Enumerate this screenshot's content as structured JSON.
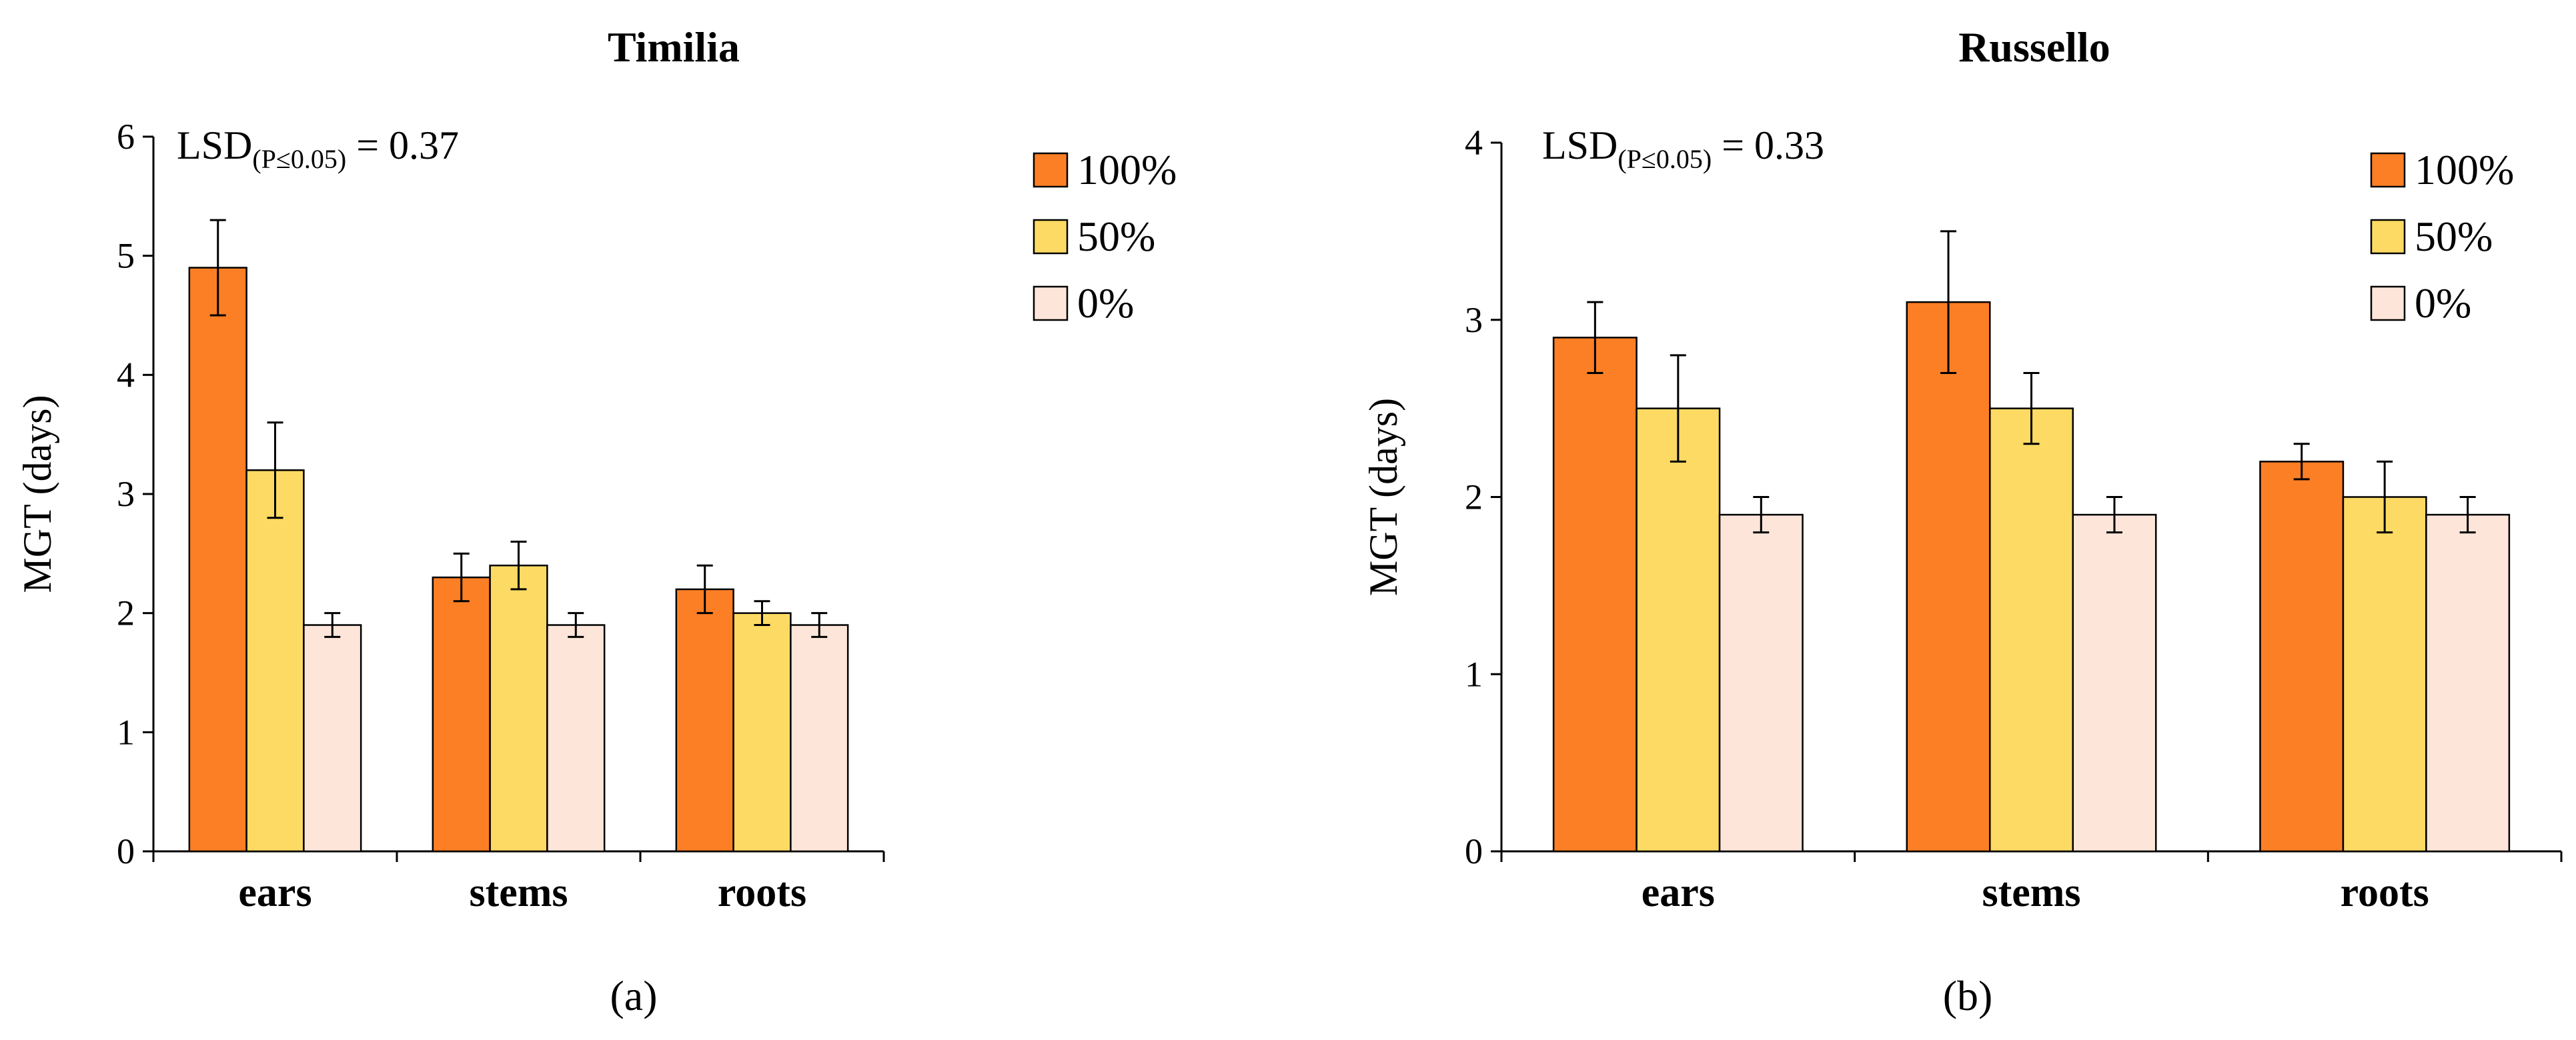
{
  "chart_data": [
    {
      "type": "bar",
      "title": "Timilia",
      "panel_label": "(a)",
      "ylabel": "MGT (days)",
      "ylim": [
        0,
        6
      ],
      "yticks": [
        0,
        1,
        2,
        3,
        4,
        5,
        6
      ],
      "categories": [
        "ears",
        "stems",
        "roots"
      ],
      "annotation": {
        "main": "LSD",
        "sub": "(P≤0.05)",
        "value": " = 0.37"
      },
      "legend_position": "top-right",
      "series": [
        {
          "name": "100%",
          "color": "#fd7f25",
          "values": [
            4.9,
            2.3,
            2.2
          ],
          "errors": [
            0.4,
            0.2,
            0.2
          ]
        },
        {
          "name": "50%",
          "color": "#fdda63",
          "values": [
            3.2,
            2.4,
            2.0
          ],
          "errors": [
            0.4,
            0.2,
            0.1
          ]
        },
        {
          "name": "0%",
          "color": "#fde5d9",
          "values": [
            1.9,
            1.9,
            1.9
          ],
          "errors": [
            0.1,
            0.1,
            0.1
          ]
        }
      ]
    },
    {
      "type": "bar",
      "title": "Russello",
      "panel_label": "(b)",
      "ylabel": "MGT (days)",
      "ylim": [
        0,
        4
      ],
      "yticks": [
        0,
        1,
        2,
        3,
        4
      ],
      "categories": [
        "ears",
        "stems",
        "roots"
      ],
      "annotation": {
        "main": "LSD",
        "sub": "(P≤0.05)",
        "value": " = 0.33"
      },
      "legend_position": "top-right",
      "series": [
        {
          "name": "100%",
          "color": "#fd7f25",
          "values": [
            2.9,
            3.1,
            2.2
          ],
          "errors": [
            0.2,
            0.4,
            0.1
          ]
        },
        {
          "name": "50%",
          "color": "#fdda63",
          "values": [
            2.5,
            2.5,
            2.0
          ],
          "errors": [
            0.3,
            0.2,
            0.2
          ]
        },
        {
          "name": "0%",
          "color": "#fde5d9",
          "values": [
            1.9,
            1.9,
            1.9
          ],
          "errors": [
            0.1,
            0.1,
            0.1
          ]
        }
      ]
    }
  ]
}
